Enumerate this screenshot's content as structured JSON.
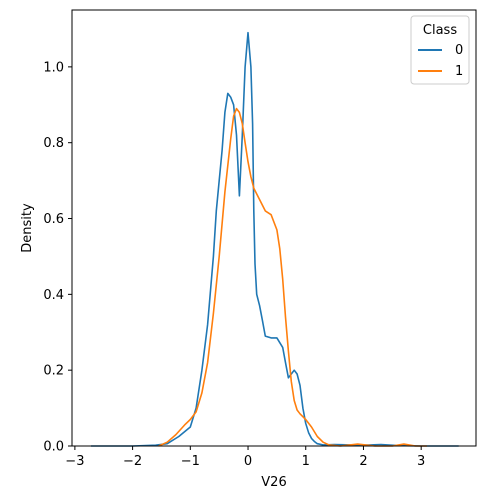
{
  "chart_data": {
    "type": "line",
    "title": "",
    "xlabel": "V26",
    "ylabel": "Density",
    "xlim": [
      -3.05,
      3.95
    ],
    "ylim": [
      0,
      1.15
    ],
    "xticks": [
      -3,
      -2,
      -1,
      0,
      1,
      2,
      3
    ],
    "xtick_labels": [
      "−3",
      "−2",
      "−1",
      "0",
      "1",
      "2",
      "3"
    ],
    "yticks": [
      0.0,
      0.2,
      0.4,
      0.6,
      0.8,
      1.0
    ],
    "ytick_labels": [
      "0.0",
      "0.2",
      "0.4",
      "0.6",
      "0.8",
      "1.0"
    ],
    "grid": false,
    "legend": {
      "title": "Class",
      "placement": "top-right"
    },
    "series": [
      {
        "name": "0",
        "color": "#1f77b4",
        "x": [
          -2.72,
          -2.0,
          -1.6,
          -1.4,
          -1.2,
          -1.0,
          -0.9,
          -0.8,
          -0.7,
          -0.6,
          -0.55,
          -0.5,
          -0.45,
          -0.4,
          -0.35,
          -0.3,
          -0.25,
          -0.2,
          -0.15,
          -0.1,
          -0.05,
          0.0,
          0.05,
          0.08,
          0.1,
          0.12,
          0.15,
          0.2,
          0.25,
          0.3,
          0.4,
          0.5,
          0.6,
          0.65,
          0.7,
          0.75,
          0.8,
          0.85,
          0.9,
          0.95,
          1.0,
          1.05,
          1.1,
          1.15,
          1.2,
          1.3,
          1.5,
          1.8,
          2.0,
          2.3,
          2.6,
          3.0,
          3.3,
          3.65
        ],
        "values": [
          0.0,
          0.0,
          0.002,
          0.006,
          0.025,
          0.05,
          0.1,
          0.2,
          0.32,
          0.5,
          0.62,
          0.7,
          0.78,
          0.88,
          0.93,
          0.92,
          0.9,
          0.82,
          0.66,
          0.82,
          1.0,
          1.09,
          1.0,
          0.85,
          0.62,
          0.48,
          0.4,
          0.37,
          0.33,
          0.29,
          0.285,
          0.285,
          0.26,
          0.22,
          0.18,
          0.19,
          0.2,
          0.19,
          0.16,
          0.1,
          0.06,
          0.035,
          0.02,
          0.012,
          0.006,
          0.003,
          0.004,
          0.003,
          0.002,
          0.004,
          0.001,
          0.0,
          0.0,
          0.0
        ]
      },
      {
        "name": "1",
        "color": "#ff7f0e",
        "x": [
          -1.55,
          -1.4,
          -1.25,
          -1.1,
          -1.0,
          -0.9,
          -0.8,
          -0.7,
          -0.6,
          -0.5,
          -0.4,
          -0.3,
          -0.25,
          -0.2,
          -0.15,
          -0.1,
          -0.05,
          0.0,
          0.05,
          0.1,
          0.2,
          0.3,
          0.4,
          0.5,
          0.55,
          0.6,
          0.65,
          0.7,
          0.75,
          0.8,
          0.85,
          0.9,
          1.0,
          1.1,
          1.2,
          1.3,
          1.4,
          1.6,
          1.9,
          2.2,
          2.5,
          2.7,
          2.9,
          3.1
        ],
        "values": [
          0.0,
          0.01,
          0.03,
          0.055,
          0.07,
          0.09,
          0.14,
          0.22,
          0.35,
          0.5,
          0.67,
          0.81,
          0.87,
          0.89,
          0.88,
          0.85,
          0.8,
          0.75,
          0.71,
          0.68,
          0.65,
          0.62,
          0.61,
          0.57,
          0.52,
          0.44,
          0.34,
          0.25,
          0.17,
          0.12,
          0.095,
          0.085,
          0.07,
          0.05,
          0.025,
          0.01,
          0.003,
          0.0,
          0.005,
          0.0,
          0.0,
          0.005,
          0.0,
          0.0
        ]
      }
    ]
  }
}
